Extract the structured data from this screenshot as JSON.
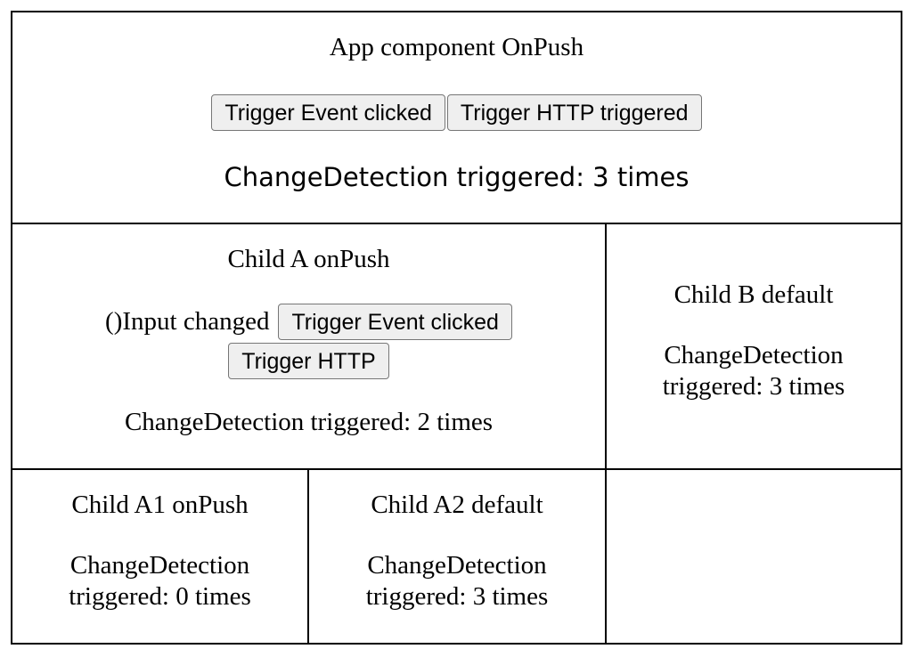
{
  "app": {
    "title": "App component OnPush",
    "buttons": {
      "event": "Trigger Event clicked",
      "http": "Trigger HTTP triggered"
    },
    "count_text": "ChangeDetection triggered: 3 times"
  },
  "child_a": {
    "title": "Child A onPush",
    "input_label": "()Input changed",
    "buttons": {
      "event": "Trigger Event clicked",
      "http": "Trigger HTTP"
    },
    "count_text": "ChangeDetection triggered: 2 times"
  },
  "child_b": {
    "title": "Child B default",
    "count_line1": "ChangeDetection",
    "count_line2": "triggered: 3 times"
  },
  "child_a1": {
    "title": "Child A1 onPush",
    "count_line1": "ChangeDetection",
    "count_line2": "triggered: 0 times"
  },
  "child_a2": {
    "title": "Child A2 default",
    "count_line1": "ChangeDetection",
    "count_line2": "triggered: 3 times"
  }
}
